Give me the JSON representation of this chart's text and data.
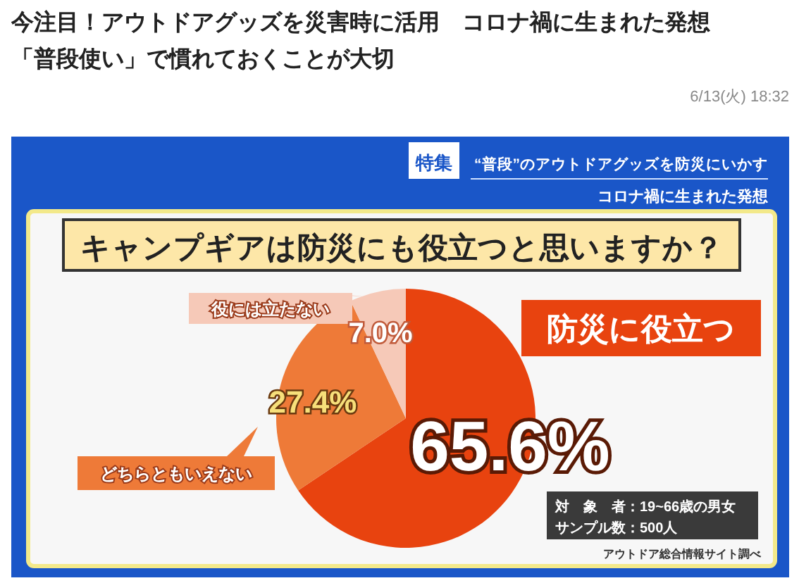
{
  "chart_data": {
    "type": "pie",
    "title": "今注目！アウトドアグッズを災害時に活用　コロナ禍に生まれた発想「普段使い」で慣れておくことが大切",
    "subtitle": "キャンプギアは防災にも役立つと思いますか？",
    "categories": [
      "防災に役立つ",
      "どちらともいえない",
      "役には立たない"
    ],
    "values": [
      65.6,
      27.4,
      7.0
    ],
    "legend": "left",
    "colors": [
      "#e8430f",
      "#ee7a38",
      "#f6c9b8"
    ],
    "value_labels": [
      "65.6%",
      "27.4%",
      "7.0%"
    ],
    "annotations": [
      "6/13(火) 18:32",
      "特集",
      "“普段”のアウトドアグッズを防災にいかす",
      "コロナ禍に生まれた発想",
      "対　象　者：19~66歳の男女",
      "サンプル数：500人",
      "アウトドア総合情報サイト調べ"
    ]
  }
}
